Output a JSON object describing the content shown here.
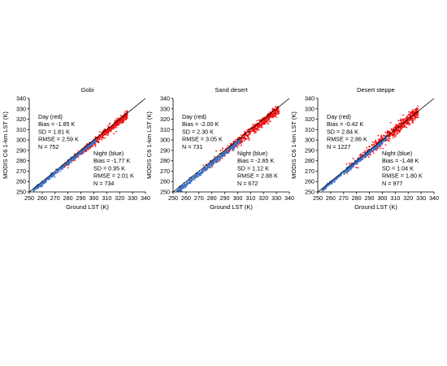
{
  "chart_data": [
    {
      "type": "scatter",
      "title": "Gobi",
      "xlabel": "Ground LST (K)",
      "ylabel": "MODIS C6 1-km LST (K)",
      "xlim": [
        250,
        340
      ],
      "ylim": [
        250,
        340
      ],
      "x_ticks": [
        "250",
        "260",
        "270",
        "280",
        "290",
        "300",
        "310",
        "320",
        "330",
        "340"
      ],
      "y_ticks": [
        "250",
        "260",
        "270",
        "280",
        "290",
        "300",
        "310",
        "320",
        "330",
        "340"
      ],
      "reference_line": "1:1",
      "series": [
        {
          "name": "Day (red)",
          "color": "#ee1111",
          "x_range": [
            274,
            326
          ],
          "bias": -1.85,
          "sd": 1.81,
          "n": 752
        },
        {
          "name": "Night (blue)",
          "color": "#3a6fc4",
          "x_range": [
            253,
            302
          ],
          "bias": -1.77,
          "sd": 0.95,
          "n": 734
        }
      ],
      "annotations": {
        "day": [
          "Day (red)",
          "Bias = -1.85 K",
          "SD = 1.81 K",
          "RMSE = 2.59 K",
          "N = 752"
        ],
        "night": [
          "Night (blue)",
          "Bias = -1.77 K",
          "SD = 0.95 K",
          "RMSE = 2.01 K",
          "N = 734"
        ]
      }
    },
    {
      "type": "scatter",
      "title": "Sand desert",
      "xlabel": "Ground LST (K)",
      "ylabel": "MODIS C6 1-km LST (K)",
      "xlim": [
        250,
        340
      ],
      "ylim": [
        250,
        340
      ],
      "x_ticks": [
        "250",
        "260",
        "270",
        "280",
        "290",
        "300",
        "310",
        "320",
        "330",
        "340"
      ],
      "y_ticks": [
        "250",
        "260",
        "270",
        "280",
        "290",
        "300",
        "310",
        "320",
        "330",
        "340"
      ],
      "reference_line": "1:1",
      "series": [
        {
          "name": "Day (red)",
          "color": "#ee1111",
          "x_range": [
            272,
            332
          ],
          "bias": -2.0,
          "sd": 2.3,
          "n": 731
        },
        {
          "name": "Night (blue)",
          "color": "#3a6fc4",
          "x_range": [
            253,
            302
          ],
          "bias": -2.65,
          "sd": 1.12,
          "n": 672
        }
      ],
      "annotations": {
        "day": [
          "Day (red)",
          "Bias = -2.00 K",
          "SD = 2.30 K",
          "RMSE = 3.05 K",
          "N = 731"
        ],
        "night": [
          "Night (blue)",
          "Bias = -2.65 K",
          "SD = 1.12 K",
          "RMSE = 2.88 K",
          "N = 672"
        ]
      }
    },
    {
      "type": "scatter",
      "title": "Desert steppe",
      "xlabel": "Ground LST (K)",
      "ylabel": "MODIS C6 1-km LST (K)",
      "xlim": [
        250,
        340
      ],
      "ylim": [
        250,
        340
      ],
      "x_ticks": [
        "250",
        "260",
        "270",
        "280",
        "290",
        "300",
        "310",
        "320",
        "330",
        "340"
      ],
      "y_ticks": [
        "250",
        "260",
        "270",
        "280",
        "290",
        "300",
        "310",
        "320",
        "330",
        "340"
      ],
      "reference_line": "1:1",
      "series": [
        {
          "name": "Day (red)",
          "color": "#ee1111",
          "x_range": [
            270,
            328
          ],
          "bias": -0.42,
          "sd": 2.84,
          "n": 1227
        },
        {
          "name": "Night (blue)",
          "color": "#3a6fc4",
          "x_range": [
            253,
            303
          ],
          "bias": -1.48,
          "sd": 1.04,
          "n": 977
        }
      ],
      "annotations": {
        "day": [
          "Day (red)",
          "Bias = -0.42 K",
          "SD = 2.84 K",
          "RMSE = 2.86 K",
          "N = 1227"
        ],
        "night": [
          "Night (blue)",
          "Bias = -1.48 K",
          "SD = 1.04 K",
          "RMSE = 1.80 K",
          "N = 977"
        ]
      }
    }
  ]
}
